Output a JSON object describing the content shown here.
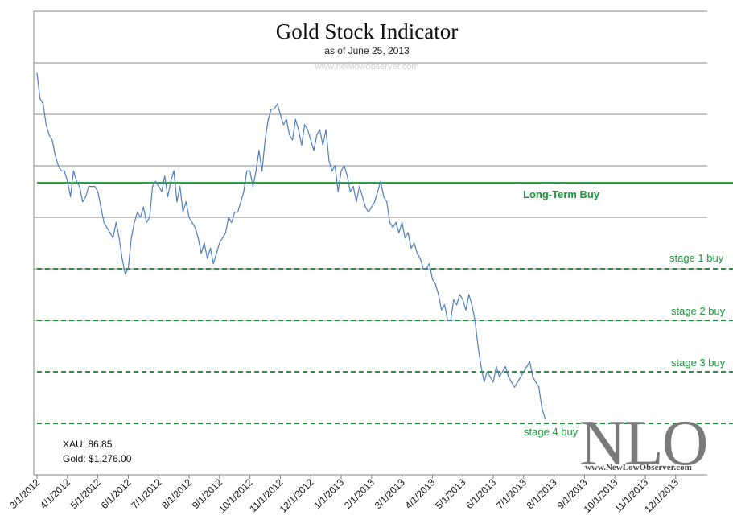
{
  "chart_data": {
    "type": "line",
    "title": "Gold Stock Indicator",
    "subtitle": "as of June 25, 2013",
    "watermark": "www.newlowobserver.com",
    "x_tick_labels": [
      "3/1/2012",
      "4/1/2012",
      "5/1/2012",
      "6/1/2012",
      "7/1/2012",
      "8/1/2012",
      "9/1/2012",
      "10/1/2012",
      "11/1/2012",
      "12/1/2012",
      "1/1/2013",
      "2/1/2013",
      "3/1/2013",
      "4/1/2013",
      "5/1/2013",
      "6/1/2013",
      "7/1/2013",
      "8/1/2013",
      "9/1/2013",
      "10/1/2013",
      "11/1/2013",
      "12/1/2013"
    ],
    "x_range": [
      0,
      22
    ],
    "y_range": [
      0,
      9
    ],
    "y_axis_labels_visible": false,
    "gridlines_solid": [
      3,
      4,
      5,
      6,
      7,
      8
    ],
    "levels": [
      {
        "name": "Long-Term Buy",
        "value": 5.67,
        "style": "solid",
        "bold": true
      },
      {
        "name": "stage 1 buy",
        "value": 4.0,
        "style": "dashed",
        "bold": false
      },
      {
        "name": "stage 2 buy",
        "value": 3.0,
        "style": "dashed",
        "bold": false
      },
      {
        "name": "stage 3 buy",
        "value": 2.0,
        "style": "dashed",
        "bold": false
      },
      {
        "name": "stage 4 buy",
        "value": 1.0,
        "style": "dashed",
        "bold": false
      }
    ],
    "series": [
      {
        "name": "Gold Stock Indicator",
        "color": "#4f7fbf",
        "points": [
          [
            0.0,
            7.8
          ],
          [
            0.1,
            7.3
          ],
          [
            0.2,
            7.2
          ],
          [
            0.3,
            6.8
          ],
          [
            0.4,
            6.6
          ],
          [
            0.5,
            6.5
          ],
          [
            0.6,
            6.2
          ],
          [
            0.7,
            6.0
          ],
          [
            0.8,
            5.9
          ],
          [
            0.9,
            5.9
          ],
          [
            1.0,
            5.7
          ],
          [
            1.1,
            5.4
          ],
          [
            1.2,
            5.9
          ],
          [
            1.3,
            5.7
          ],
          [
            1.4,
            5.6
          ],
          [
            1.5,
            5.3
          ],
          [
            1.6,
            5.4
          ],
          [
            1.7,
            5.6
          ],
          [
            1.8,
            5.6
          ],
          [
            1.9,
            5.6
          ],
          [
            2.0,
            5.5
          ],
          [
            2.1,
            5.2
          ],
          [
            2.2,
            4.9
          ],
          [
            2.3,
            4.8
          ],
          [
            2.4,
            4.7
          ],
          [
            2.5,
            4.6
          ],
          [
            2.6,
            4.9
          ],
          [
            2.7,
            4.6
          ],
          [
            2.8,
            4.2
          ],
          [
            2.9,
            3.9
          ],
          [
            3.0,
            4.0
          ],
          [
            3.1,
            4.6
          ],
          [
            3.2,
            4.9
          ],
          [
            3.3,
            5.1
          ],
          [
            3.4,
            5.0
          ],
          [
            3.5,
            5.2
          ],
          [
            3.6,
            4.9
          ],
          [
            3.7,
            5.0
          ],
          [
            3.8,
            5.6
          ],
          [
            3.9,
            5.7
          ],
          [
            4.0,
            5.6
          ],
          [
            4.1,
            5.5
          ],
          [
            4.2,
            5.8
          ],
          [
            4.3,
            5.4
          ],
          [
            4.4,
            5.7
          ],
          [
            4.5,
            5.9
          ],
          [
            4.6,
            5.3
          ],
          [
            4.7,
            5.6
          ],
          [
            4.8,
            5.1
          ],
          [
            4.9,
            5.3
          ],
          [
            5.0,
            5.0
          ],
          [
            5.1,
            4.9
          ],
          [
            5.2,
            4.8
          ],
          [
            5.3,
            4.6
          ],
          [
            5.4,
            4.3
          ],
          [
            5.5,
            4.5
          ],
          [
            5.6,
            4.2
          ],
          [
            5.7,
            4.4
          ],
          [
            5.8,
            4.1
          ],
          [
            5.9,
            4.3
          ],
          [
            6.0,
            4.5
          ],
          [
            6.1,
            4.6
          ],
          [
            6.2,
            4.7
          ],
          [
            6.3,
            5.0
          ],
          [
            6.4,
            4.9
          ],
          [
            6.5,
            5.1
          ],
          [
            6.6,
            5.1
          ],
          [
            6.7,
            5.3
          ],
          [
            6.8,
            5.5
          ],
          [
            6.9,
            5.9
          ],
          [
            7.0,
            5.9
          ],
          [
            7.1,
            5.6
          ],
          [
            7.2,
            5.9
          ],
          [
            7.3,
            6.3
          ],
          [
            7.4,
            5.9
          ],
          [
            7.5,
            6.5
          ],
          [
            7.6,
            6.9
          ],
          [
            7.7,
            7.1
          ],
          [
            7.8,
            7.1
          ],
          [
            7.9,
            7.2
          ],
          [
            8.0,
            7.0
          ],
          [
            8.1,
            6.8
          ],
          [
            8.2,
            6.9
          ],
          [
            8.3,
            6.6
          ],
          [
            8.4,
            6.5
          ],
          [
            8.5,
            6.9
          ],
          [
            8.6,
            6.7
          ],
          [
            8.7,
            6.4
          ],
          [
            8.8,
            6.8
          ],
          [
            8.9,
            6.7
          ],
          [
            9.0,
            6.5
          ],
          [
            9.1,
            6.3
          ],
          [
            9.2,
            6.6
          ],
          [
            9.3,
            6.7
          ],
          [
            9.4,
            6.4
          ],
          [
            9.5,
            6.7
          ],
          [
            9.6,
            6.1
          ],
          [
            9.7,
            5.9
          ],
          [
            9.8,
            6.0
          ],
          [
            9.9,
            5.5
          ],
          [
            10.0,
            5.9
          ],
          [
            10.1,
            6.0
          ],
          [
            10.2,
            5.8
          ],
          [
            10.3,
            5.5
          ],
          [
            10.4,
            5.6
          ],
          [
            10.5,
            5.3
          ],
          [
            10.6,
            5.6
          ],
          [
            10.7,
            5.4
          ],
          [
            10.8,
            5.2
          ],
          [
            10.9,
            5.1
          ],
          [
            11.0,
            5.2
          ],
          [
            11.1,
            5.3
          ],
          [
            11.2,
            5.5
          ],
          [
            11.3,
            5.7
          ],
          [
            11.4,
            5.4
          ],
          [
            11.5,
            5.3
          ],
          [
            11.6,
            4.9
          ],
          [
            11.7,
            4.8
          ],
          [
            11.8,
            4.9
          ],
          [
            11.9,
            4.7
          ],
          [
            12.0,
            4.9
          ],
          [
            12.1,
            4.6
          ],
          [
            12.2,
            4.7
          ],
          [
            12.3,
            4.4
          ],
          [
            12.4,
            4.5
          ],
          [
            12.5,
            4.3
          ],
          [
            12.6,
            4.2
          ],
          [
            12.7,
            4.0
          ],
          [
            12.8,
            4.0
          ],
          [
            12.9,
            4.1
          ],
          [
            13.0,
            3.8
          ],
          [
            13.1,
            3.7
          ],
          [
            13.2,
            3.5
          ],
          [
            13.3,
            3.2
          ],
          [
            13.4,
            3.3
          ],
          [
            13.5,
            3.0
          ],
          [
            13.6,
            3.0
          ],
          [
            13.7,
            3.4
          ],
          [
            13.8,
            3.3
          ],
          [
            13.9,
            3.5
          ],
          [
            14.0,
            3.4
          ],
          [
            14.1,
            3.2
          ],
          [
            14.2,
            3.5
          ],
          [
            14.3,
            3.3
          ],
          [
            14.4,
            3.0
          ],
          [
            14.5,
            2.5
          ],
          [
            14.6,
            2.1
          ],
          [
            14.7,
            1.8
          ],
          [
            14.8,
            2.0
          ],
          [
            14.9,
            1.9
          ],
          [
            15.0,
            1.8
          ],
          [
            15.1,
            2.1
          ],
          [
            15.2,
            1.9
          ],
          [
            15.3,
            2.0
          ],
          [
            15.4,
            2.1
          ],
          [
            15.5,
            1.9
          ],
          [
            15.6,
            1.8
          ],
          [
            15.7,
            1.7
          ],
          [
            15.8,
            1.8
          ],
          [
            15.9,
            1.9
          ],
          [
            16.0,
            2.0
          ],
          [
            16.1,
            2.1
          ],
          [
            16.2,
            2.2
          ],
          [
            16.3,
            1.9
          ],
          [
            16.4,
            1.8
          ],
          [
            16.5,
            1.7
          ],
          [
            16.6,
            1.3
          ],
          [
            16.7,
            1.1
          ]
        ]
      }
    ]
  },
  "stats": {
    "xau": "XAU: 86.85",
    "gold": "Gold: $1,276.00"
  },
  "logo": {
    "text": "NLO",
    "url": "www.NewLowObserver.com"
  }
}
